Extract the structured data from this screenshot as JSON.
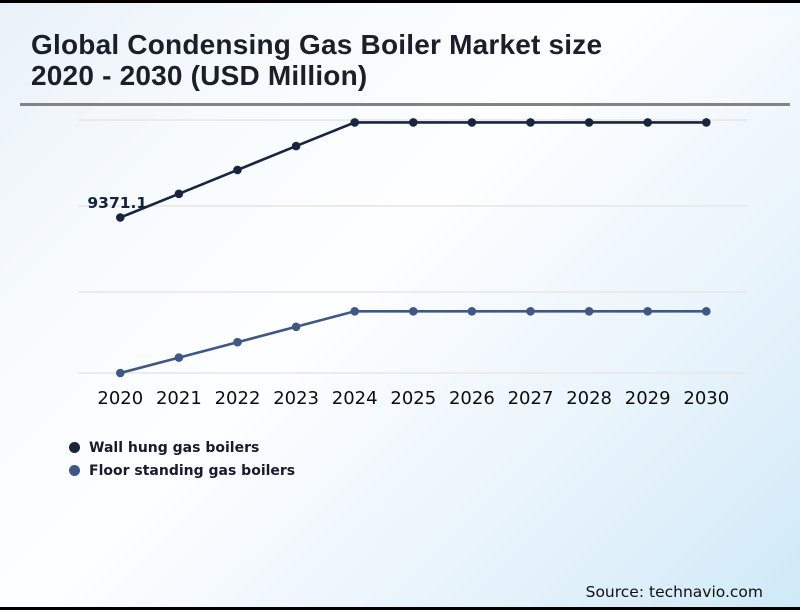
{
  "title_line1": "Global Condensing Gas Boiler Market size",
  "title_line2": "2020 - 2030 (USD Million)",
  "source_credit": "Source: technavio.com",
  "chart_data": {
    "type": "line",
    "title": "Global Condensing Gas Boiler Market size 2020 - 2030 (USD Million)",
    "x": [
      "2020",
      "2021",
      "2022",
      "2023",
      "2024",
      "2025",
      "2026",
      "2027",
      "2028",
      "2029",
      "2030"
    ],
    "series": [
      {
        "name": "Wall hung gas boilers",
        "color": "#19253f",
        "values": [
          9371.1,
          9940,
          10515,
          11085,
          11655,
          11655,
          11655,
          11655,
          11655,
          11655,
          11655
        ],
        "point_label": {
          "x": "2020",
          "text": "9371.1"
        }
      },
      {
        "name": "Floor standing gas boilers",
        "color": "#3e5787",
        "values": [
          5640,
          6010,
          6380,
          6750,
          7120,
          7120,
          7120,
          7120,
          7120,
          7120,
          7120
        ]
      }
    ],
    "value_axis": {
      "labels_visible": false,
      "vmin": 5400,
      "vmax": 12000,
      "gridline_values": [
        11710,
        9650,
        7585,
        5640
      ]
    },
    "grid": "horizontal-faint",
    "legend_position": "bottom-left",
    "note": "Only the 2020 wall-hung value (9371.1) is labeled on the chart; all other values are estimated from point positions (flat teaser plateau 2024-2030)"
  }
}
